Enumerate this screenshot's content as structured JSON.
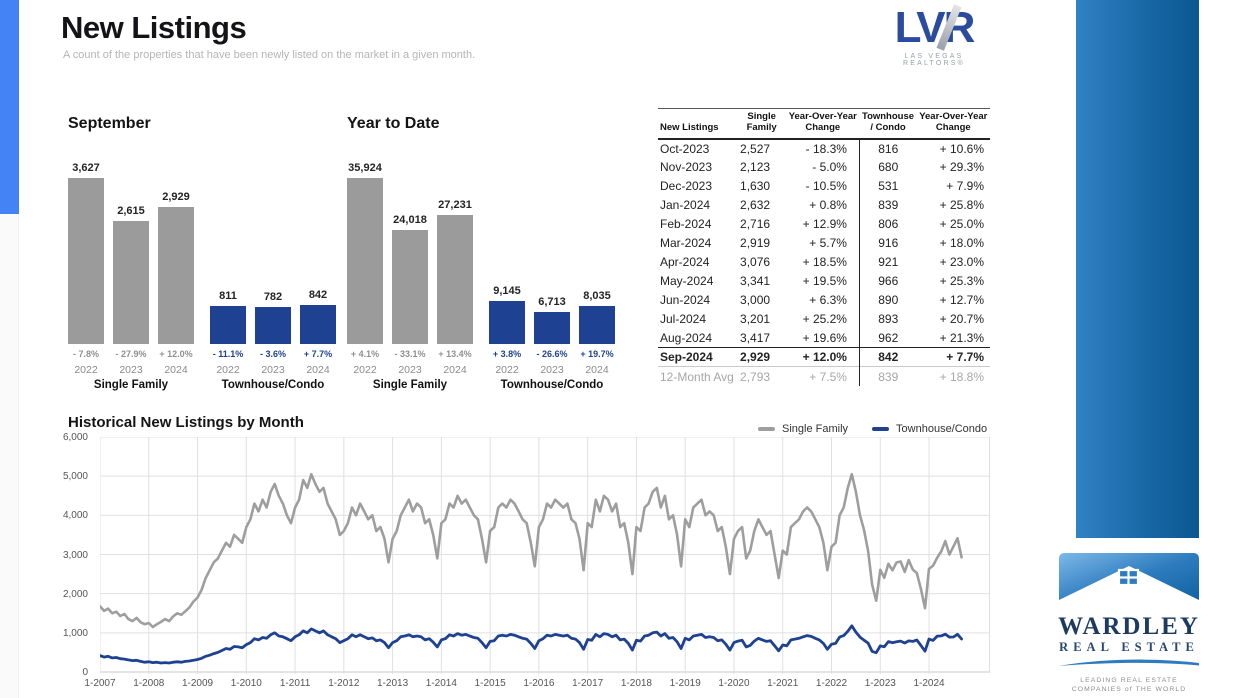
{
  "page": {
    "title": "New Listings",
    "subtitle": "A count of the properties that have been newly listed on the market in a given month."
  },
  "logo_lvr": {
    "text": "LVR",
    "subtext": "LAS VEGAS REALTORS®"
  },
  "logo_wardley": {
    "name": "WARDLEY",
    "sub": "REAL ESTATE",
    "tiny_line1": "LEADING REAL ESTATE",
    "tiny_line2": "COMPANIES of THE WORLD"
  },
  "colors": {
    "bar_gray": "#9b9b9b",
    "bar_blue": "#1e4191",
    "pct_gray": "#8f8f8f",
    "pct_blue": "#1e4191",
    "line_gray": "#9e9e9e",
    "line_blue": "#1e4191",
    "grid": "#e0e0e0",
    "axis": "#c9c9c9"
  },
  "chart_data": [
    {
      "type": "bar",
      "title": "September",
      "groups": [
        {
          "label": "Single Family",
          "color_key": "bar_gray",
          "pct_key": "pct_gray",
          "bars": [
            {
              "year": "2022",
              "value": 3627,
              "value_label": "3,627",
              "change": "- 7.8%"
            },
            {
              "year": "2023",
              "value": 2615,
              "value_label": "2,615",
              "change": "- 27.9%"
            },
            {
              "year": "2024",
              "value": 2929,
              "value_label": "2,929",
              "change": "+ 12.0%"
            }
          ]
        },
        {
          "label": "Townhouse/Condo",
          "color_key": "bar_blue",
          "pct_key": "pct_blue",
          "bars": [
            {
              "year": "2022",
              "value": 811,
              "value_label": "811",
              "change": "- 11.1%"
            },
            {
              "year": "2023",
              "value": 782,
              "value_label": "782",
              "change": "- 3.6%"
            },
            {
              "year": "2024",
              "value": 842,
              "value_label": "842",
              "change": "+ 7.7%"
            }
          ]
        }
      ]
    },
    {
      "type": "bar",
      "title": "Year to Date",
      "groups": [
        {
          "label": "Single Family",
          "color_key": "bar_gray",
          "pct_key": "pct_gray",
          "bars": [
            {
              "year": "2022",
              "value": 35924,
              "value_label": "35,924",
              "change": "+ 4.1%"
            },
            {
              "year": "2023",
              "value": 24018,
              "value_label": "24,018",
              "change": "- 33.1%"
            },
            {
              "year": "2024",
              "value": 27231,
              "value_label": "27,231",
              "change": "+ 13.4%"
            }
          ]
        },
        {
          "label": "Townhouse/Condo",
          "color_key": "bar_blue",
          "pct_key": "pct_blue",
          "bars": [
            {
              "year": "2022",
              "value": 9145,
              "value_label": "9,145",
              "change": "+ 3.8%"
            },
            {
              "year": "2023",
              "value": 6713,
              "value_label": "6,713",
              "change": "- 26.6%"
            },
            {
              "year": "2024",
              "value": 8035,
              "value_label": "8,035",
              "change": "+ 19.7%"
            }
          ]
        }
      ]
    },
    {
      "type": "line",
      "title": "Historical New Listings by Month",
      "legend": [
        "Single Family",
        "Townhouse/Condo"
      ],
      "ylim": [
        0,
        6000
      ],
      "ytick_labels": [
        "6,000",
        "5,000",
        "4,000",
        "3,000",
        "2,000",
        "1,000",
        "0"
      ],
      "xtick_labels": [
        "1-2007",
        "1-2008",
        "1-2009",
        "1-2010",
        "1-2011",
        "1-2012",
        "1-2013",
        "1-2014",
        "1-2015",
        "1-2016",
        "1-2017",
        "1-2018",
        "1-2019",
        "1-2020",
        "1-2021",
        "1-2022",
        "1-2023",
        "1-2024"
      ],
      "x_start": "2007-01",
      "x_end": "2024-09",
      "axis_total_months": 219,
      "grid": true,
      "legend_position": "top-right",
      "series": [
        {
          "name": "Single Family",
          "values": [
            1680,
            1560,
            1620,
            1500,
            1540,
            1430,
            1480,
            1350,
            1300,
            1380,
            1270,
            1220,
            1250,
            1150,
            1220,
            1280,
            1350,
            1300,
            1420,
            1500,
            1460,
            1550,
            1650,
            1800,
            1900,
            2100,
            2400,
            2600,
            2800,
            2900,
            3100,
            3300,
            3200,
            3500,
            3400,
            3300,
            3700,
            3900,
            4300,
            4100,
            4400,
            4200,
            4600,
            4800,
            4500,
            4300,
            4000,
            3800,
            4200,
            4400,
            4900,
            4700,
            5050,
            4800,
            4600,
            4700,
            4300,
            4100,
            3900,
            3500,
            3600,
            3800,
            4200,
            4000,
            4300,
            4100,
            3900,
            4000,
            3600,
            3700,
            3400,
            2800,
            3400,
            3600,
            4000,
            4200,
            4400,
            4100,
            4300,
            4200,
            3800,
            3900,
            3500,
            2900,
            3800,
            3900,
            4300,
            4200,
            4500,
            4300,
            4400,
            4200,
            4000,
            3900,
            3400,
            2800,
            3600,
            3700,
            4200,
            4300,
            4200,
            4400,
            4300,
            4100,
            3900,
            3800,
            3300,
            2700,
            3700,
            3900,
            4300,
            4200,
            4400,
            4300,
            4200,
            4300,
            3900,
            3800,
            3400,
            2600,
            3800,
            3700,
            4400,
            4100,
            4500,
            4400,
            4100,
            4300,
            3700,
            3800,
            3300,
            2500,
            3700,
            3600,
            4200,
            4300,
            4600,
            4700,
            4200,
            4500,
            3900,
            4000,
            3500,
            2700,
            3900,
            3700,
            4200,
            4300,
            4400,
            4000,
            4100,
            4000,
            3600,
            3700,
            3200,
            2500,
            3400,
            3600,
            3700,
            2900,
            3100,
            3600,
            3900,
            3700,
            3500,
            3600,
            3000,
            2400,
            3100,
            3000,
            3700,
            3800,
            3900,
            4100,
            4200,
            4100,
            3900,
            3700,
            3300,
            2600,
            3200,
            3300,
            4000,
            4200,
            4700,
            5050,
            4600,
            4000,
            3627,
            3093,
            2235,
            1821,
            2610,
            2406,
            2762,
            2596,
            2796,
            2822,
            2557,
            2857,
            2615,
            2527,
            2123,
            1630,
            2632,
            2716,
            2919,
            3076,
            3341,
            3000,
            3201,
            3417,
            2929
          ]
        },
        {
          "name": "Townhouse/Condo",
          "values": [
            420,
            380,
            400,
            360,
            370,
            340,
            330,
            310,
            290,
            300,
            270,
            250,
            260,
            240,
            250,
            230,
            240,
            230,
            250,
            260,
            250,
            270,
            280,
            300,
            320,
            350,
            400,
            430,
            470,
            500,
            550,
            600,
            580,
            650,
            640,
            620,
            700,
            750,
            850,
            820,
            880,
            860,
            950,
            1000,
            920,
            900,
            850,
            800,
            900,
            950,
            1050,
            1000,
            1100,
            1050,
            1000,
            1050,
            950,
            900,
            850,
            750,
            800,
            850,
            950,
            900,
            950,
            900,
            850,
            870,
            800,
            820,
            750,
            620,
            750,
            800,
            900,
            920,
            950,
            900,
            920,
            900,
            820,
            850,
            760,
            640,
            820,
            850,
            950,
            920,
            980,
            940,
            960,
            920,
            880,
            860,
            750,
            620,
            780,
            800,
            920,
            940,
            920,
            960,
            940,
            900,
            860,
            840,
            730,
            600,
            800,
            850,
            940,
            920,
            960,
            940,
            920,
            940,
            860,
            840,
            750,
            580,
            830,
            810,
            960,
            900,
            980,
            960,
            900,
            940,
            820,
            840,
            730,
            560,
            810,
            790,
            920,
            940,
            1000,
            1020,
            920,
            980,
            860,
            880,
            770,
            600,
            860,
            820,
            920,
            940,
            960,
            880,
            900,
            880,
            800,
            820,
            710,
            560,
            750,
            790,
            810,
            640,
            680,
            790,
            860,
            820,
            780,
            800,
            670,
            540,
            690,
            670,
            820,
            840,
            860,
            900,
            930,
            910,
            860,
            820,
            730,
            580,
            710,
            730,
            890,
            930,
            1040,
            1180,
            1020,
            890,
            811,
            738,
            526,
            492,
            667,
            645,
            776,
            749,
            771,
            790,
            740,
            793,
            782,
            816,
            680,
            531,
            839,
            806,
            916,
            921,
            966,
            890,
            893,
            962,
            842
          ]
        }
      ]
    }
  ],
  "table": {
    "headers": [
      "New Listings",
      "Single\nFamily",
      "Year-Over-Year\nChange",
      "Townhouse\n/ Condo",
      "Year-Over-Year\nChange"
    ],
    "rows": [
      [
        "Oct-2023",
        "2,527",
        "- 18.3%",
        "816",
        "+ 10.6%"
      ],
      [
        "Nov-2023",
        "2,123",
        "- 5.0%",
        "680",
        "+ 29.3%"
      ],
      [
        "Dec-2023",
        "1,630",
        "- 10.5%",
        "531",
        "+ 7.9%"
      ],
      [
        "Jan-2024",
        "2,632",
        "+ 0.8%",
        "839",
        "+ 25.8%"
      ],
      [
        "Feb-2024",
        "2,716",
        "+ 12.9%",
        "806",
        "+ 25.0%"
      ],
      [
        "Mar-2024",
        "2,919",
        "+ 5.7%",
        "916",
        "+ 18.0%"
      ],
      [
        "Apr-2024",
        "3,076",
        "+ 18.5%",
        "921",
        "+ 23.0%"
      ],
      [
        "May-2024",
        "3,341",
        "+ 19.5%",
        "966",
        "+ 25.3%"
      ],
      [
        "Jun-2024",
        "3,000",
        "+ 6.3%",
        "890",
        "+ 12.7%"
      ],
      [
        "Jul-2024",
        "3,201",
        "+ 25.2%",
        "893",
        "+ 20.7%"
      ],
      [
        "Aug-2024",
        "3,417",
        "+ 19.6%",
        "962",
        "+ 21.3%"
      ],
      [
        "Sep-2024",
        "2,929",
        "+ 12.0%",
        "842",
        "+ 7.7%"
      ]
    ],
    "bold_row": "Sep-2024",
    "footer_row": [
      "12-Month Avg",
      "2,793",
      "+ 7.5%",
      "839",
      "+ 18.8%"
    ]
  }
}
